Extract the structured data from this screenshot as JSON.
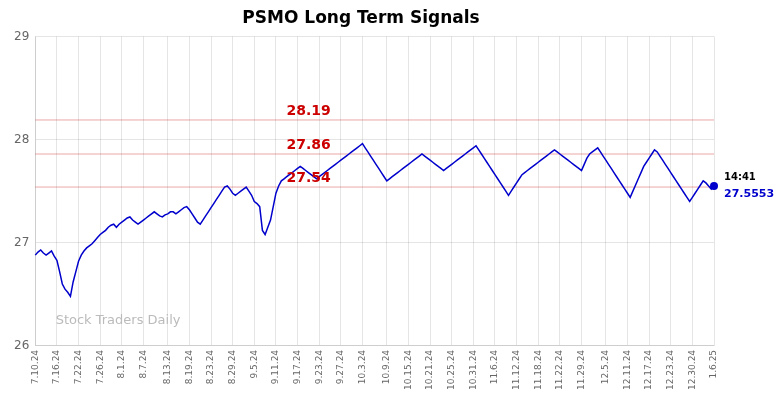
{
  "chart_data": {
    "type": "line",
    "title": "PSMO Long Term Signals",
    "categories": [
      "7.10.24",
      null,
      null,
      null,
      null,
      null,
      null,
      null,
      "7.16.24",
      null,
      null,
      null,
      null,
      null,
      null,
      null,
      "7.22.24",
      null,
      null,
      null,
      null,
      null,
      null,
      null,
      "7.26.24",
      null,
      null,
      null,
      null,
      null,
      null,
      null,
      "8.1.24",
      null,
      null,
      null,
      null,
      null,
      null,
      null,
      "8.7.24",
      null,
      null,
      null,
      null,
      null,
      null,
      null,
      null,
      "8.13.24",
      null,
      null,
      null,
      null,
      null,
      null,
      null,
      "8.19.24",
      null,
      null,
      null,
      null,
      null,
      null,
      null,
      "8.23.24",
      null,
      null,
      null,
      null,
      null,
      null,
      null,
      "8.29.24",
      null,
      null,
      null,
      null,
      null,
      null,
      null,
      "9.5.24",
      null,
      null,
      null,
      null,
      null,
      null,
      null,
      "9.11.24",
      null,
      null,
      null,
      null,
      null,
      null,
      null,
      "9.17.24",
      null,
      null,
      null,
      null,
      null,
      null,
      null,
      "9.23.24",
      null,
      null,
      null,
      null,
      null,
      null,
      null,
      "9.27.24",
      null,
      null,
      null,
      null,
      null,
      null,
      null,
      "10.3.24",
      null,
      null,
      null,
      null,
      null,
      null,
      null,
      null,
      "10.9.24",
      null,
      null,
      null,
      null,
      null,
      null,
      null,
      "10.15.24",
      null,
      null,
      null,
      null,
      null,
      null,
      null,
      "10.21.24",
      null,
      null,
      null,
      null,
      null,
      null,
      null,
      "10.25.24",
      null,
      null,
      null,
      null,
      null,
      null,
      null,
      "10.31.24",
      null,
      null,
      null,
      null,
      null,
      null,
      null,
      "11.6.24",
      null,
      null,
      null,
      null,
      null,
      null,
      null,
      "11.12.24",
      null,
      null,
      null,
      null,
      null,
      null,
      null,
      "11.18.24",
      null,
      null,
      null,
      null,
      null,
      null,
      null,
      "11.22.24",
      null,
      null,
      null,
      null,
      null,
      null,
      null,
      "11.29.24",
      null,
      null,
      null,
      null,
      null,
      null,
      null,
      null,
      "12.5.24",
      null,
      null,
      null,
      null,
      null,
      null,
      null,
      "12.11.24",
      null,
      null,
      null,
      null,
      null,
      null,
      null,
      "12.17.24",
      null,
      null,
      null,
      null,
      null,
      null,
      null,
      "12.23.24",
      null,
      null,
      null,
      null,
      null,
      null,
      null,
      "12.30.24",
      null,
      null,
      null,
      null,
      null,
      null,
      null,
      "1.6.25"
    ],
    "values": [
      26.88,
      26.91,
      26.93,
      26.9,
      26.88,
      26.9,
      26.92,
      26.87,
      26.83,
      26.72,
      26.6,
      26.55,
      26.52,
      26.48,
      26.62,
      26.72,
      26.82,
      26.88,
      26.92,
      26.95,
      26.97,
      26.99,
      27.02,
      27.05,
      27.08,
      27.1,
      27.12,
      27.15,
      27.17,
      27.18,
      27.15,
      27.18,
      27.2,
      27.22,
      27.24,
      27.25,
      27.22,
      27.2,
      27.18,
      27.2,
      27.22,
      27.24,
      27.26,
      27.28,
      27.3,
      27.28,
      27.26,
      27.25,
      27.27,
      27.28,
      27.3,
      27.3,
      27.28,
      27.3,
      27.32,
      27.34,
      27.35,
      27.32,
      27.28,
      27.24,
      27.2,
      27.18,
      27.22,
      27.26,
      27.3,
      27.34,
      27.38,
      27.42,
      27.46,
      27.5,
      27.54,
      27.55,
      27.52,
      27.48,
      27.46,
      27.48,
      27.5,
      27.52,
      27.54,
      27.5,
      27.46,
      27.4,
      27.38,
      27.35,
      27.12,
      27.08,
      27.15,
      27.22,
      27.35,
      27.48,
      27.55,
      27.6,
      27.62,
      27.64,
      27.66,
      27.68,
      27.7,
      27.72,
      27.74,
      27.72,
      27.7,
      27.68,
      27.66,
      27.64,
      27.62,
      27.64,
      27.66,
      27.68,
      27.7,
      27.72,
      27.74,
      27.76,
      27.78,
      27.8,
      27.82,
      27.84,
      27.86,
      27.88,
      27.9,
      27.92,
      27.94,
      27.96,
      27.92,
      27.88,
      27.84,
      27.8,
      27.76,
      27.72,
      27.68,
      27.64,
      27.6,
      27.62,
      27.64,
      27.66,
      27.68,
      27.7,
      27.72,
      27.74,
      27.76,
      27.78,
      27.8,
      27.82,
      27.84,
      27.86,
      27.84,
      27.82,
      27.8,
      27.78,
      27.76,
      27.74,
      27.72,
      27.7,
      27.72,
      27.74,
      27.76,
      27.78,
      27.8,
      27.82,
      27.84,
      27.86,
      27.88,
      27.9,
      27.92,
      27.94,
      27.9,
      27.86,
      27.82,
      27.78,
      27.74,
      27.7,
      27.66,
      27.62,
      27.58,
      27.54,
      27.5,
      27.46,
      27.5,
      27.54,
      27.58,
      27.62,
      27.66,
      27.68,
      27.7,
      27.72,
      27.74,
      27.76,
      27.78,
      27.8,
      27.82,
      27.84,
      27.86,
      27.88,
      27.9,
      27.88,
      27.86,
      27.84,
      27.82,
      27.8,
      27.78,
      27.76,
      27.74,
      27.72,
      27.7,
      27.76,
      27.82,
      27.86,
      27.88,
      27.9,
      27.92,
      27.88,
      27.84,
      27.8,
      27.76,
      27.72,
      27.68,
      27.64,
      27.6,
      27.56,
      27.52,
      27.48,
      27.44,
      27.5,
      27.56,
      27.62,
      27.68,
      27.74,
      27.78,
      27.82,
      27.86,
      27.9,
      27.88,
      27.84,
      27.8,
      27.76,
      27.72,
      27.68,
      27.64,
      27.6,
      27.56,
      27.52,
      27.48,
      27.44,
      27.4,
      27.44,
      27.48,
      27.52,
      27.56,
      27.6,
      27.58,
      27.55,
      27.52,
      27.55
    ],
    "color": "#0000cc",
    "ylim": [
      26,
      29
    ],
    "yticks": [
      26,
      27,
      28,
      29
    ],
    "grid": true,
    "hlines": [
      {
        "y": 28.19,
        "label": "28.19",
        "color": "#cc0000"
      },
      {
        "y": 27.86,
        "label": "27.86",
        "color": "#cc0000"
      },
      {
        "y": 27.54,
        "label": "27.54",
        "color": "#cc0000"
      }
    ],
    "annotations": [
      {
        "text": "14:41"
      },
      {
        "text": "27.5553",
        "color": "#0000cc"
      }
    ],
    "watermark": "Stock Traders Daily"
  }
}
